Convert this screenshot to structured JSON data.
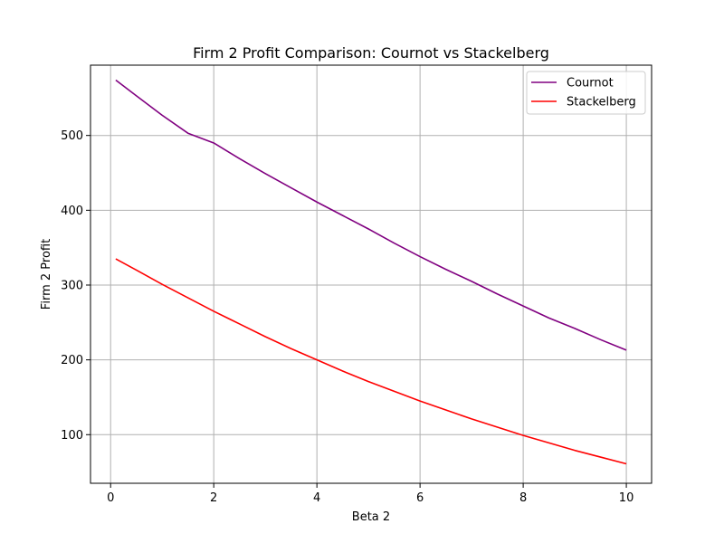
{
  "chart_data": {
    "type": "line",
    "title": "Firm 2 Profit Comparison: Cournot vs Stackelberg",
    "xlabel": "Beta 2",
    "ylabel": "Firm 2 Profit",
    "xlim": [
      -0.39,
      10.49
    ],
    "ylim": [
      35,
      594
    ],
    "xticks": [
      0,
      2,
      4,
      6,
      8,
      10
    ],
    "yticks": [
      100,
      200,
      300,
      400,
      500
    ],
    "grid": true,
    "legend_position": "top-right",
    "x": [
      0.1,
      0.5,
      1,
      1.5,
      2,
      2.5,
      3,
      3.5,
      4,
      4.5,
      5,
      5.5,
      6,
      6.5,
      7,
      7.5,
      8,
      8.5,
      9,
      9.5,
      10
    ],
    "series": [
      {
        "name": "Cournot",
        "color": "#800080",
        "values": [
          574,
          553,
          527,
          503,
          490,
          469,
          449,
          430,
          411,
          393,
          375,
          356,
          338,
          321,
          305,
          288,
          272,
          256,
          242,
          227,
          213
        ]
      },
      {
        "name": "Stackelberg",
        "color": "#ff0000",
        "values": [
          335,
          320,
          301,
          283,
          265,
          248,
          231,
          215,
          200,
          185,
          171,
          158,
          145,
          133,
          121,
          110,
          99,
          89,
          79,
          70,
          61
        ]
      }
    ]
  }
}
